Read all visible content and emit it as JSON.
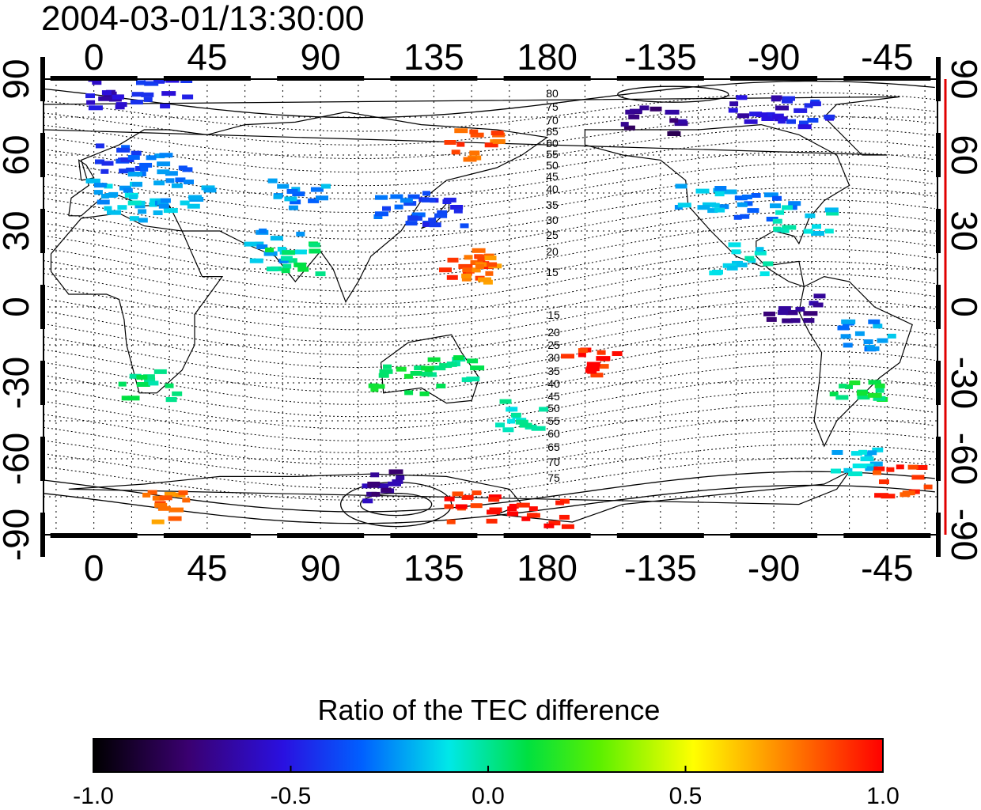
{
  "title": "2004-03-01/13:30:00",
  "map": {
    "lon_ticks_top": [
      "0",
      "45",
      "90",
      "135",
      "180",
      "-135",
      "-90",
      "-45"
    ],
    "lon_ticks_bottom": [
      "0",
      "45",
      "90",
      "135",
      "180",
      "-135",
      "-90",
      "-45"
    ],
    "lat_ticks_left": [
      "90",
      "60",
      "30",
      "0",
      "-30",
      "-60",
      "-90"
    ],
    "lat_ticks_right": [
      "90",
      "60",
      "30",
      "0",
      "-30",
      "-60",
      "-90"
    ],
    "contour_labels_north": [
      "80",
      "75",
      "70",
      "65",
      "60",
      "55",
      "50",
      "45",
      "40",
      "35",
      "30",
      "25",
      "20",
      "15"
    ],
    "contour_labels_south": [
      "15",
      "20",
      "25",
      "30",
      "35",
      "40",
      "45",
      "50",
      "55",
      "60",
      "65",
      "70",
      "75"
    ],
    "right_axis_color": "#e00000"
  },
  "colorbar": {
    "title": "Ratio of the TEC difference",
    "tick_labels": [
      "-1.0",
      "-0.5",
      "0.0",
      "0.5",
      "1.0"
    ],
    "range": [
      -1.0,
      1.0
    ],
    "colormap": [
      "#000000",
      "#3a0070",
      "#2a10e0",
      "#0060ff",
      "#00e8e8",
      "#00e040",
      "#5af000",
      "#ffff00",
      "#ff8000",
      "#ff0000"
    ]
  },
  "chart_data": {
    "type": "heatmap",
    "title": "2004-03-01/13:30:00",
    "colorbar_label": "Ratio of the TEC difference",
    "value_range": [
      -1.0,
      1.0
    ],
    "lon_range": [
      -20,
      335
    ],
    "lat_range": [
      -90,
      90
    ],
    "grid": true,
    "patches": [
      {
        "lon": 5,
        "lat": 85,
        "v": -0.6
      },
      {
        "lon": 25,
        "lat": 86,
        "v": -0.5
      },
      {
        "lon": 10,
        "lat": 60,
        "v": -0.4
      },
      {
        "lon": 25,
        "lat": 55,
        "v": -0.3
      },
      {
        "lon": 5,
        "lat": 48,
        "v": -0.2
      },
      {
        "lon": 15,
        "lat": 40,
        "v": -0.15
      },
      {
        "lon": 35,
        "lat": 45,
        "v": -0.2
      },
      {
        "lon": 80,
        "lat": 45,
        "v": -0.25
      },
      {
        "lon": 70,
        "lat": 25,
        "v": -0.2
      },
      {
        "lon": 78,
        "lat": 20,
        "v": 0.05
      },
      {
        "lon": 120,
        "lat": 40,
        "v": -0.35
      },
      {
        "lon": 135,
        "lat": 38,
        "v": -0.45
      },
      {
        "lon": 145,
        "lat": 18,
        "v": 0.9
      },
      {
        "lon": 152,
        "lat": 15,
        "v": 0.8
      },
      {
        "lon": 150,
        "lat": 65,
        "v": 0.85
      },
      {
        "lon": 220,
        "lat": 75,
        "v": -0.75
      },
      {
        "lon": 260,
        "lat": 80,
        "v": -0.6
      },
      {
        "lon": 280,
        "lat": 78,
        "v": -0.5
      },
      {
        "lon": 240,
        "lat": 45,
        "v": -0.2
      },
      {
        "lon": 265,
        "lat": 40,
        "v": -0.3
      },
      {
        "lon": 280,
        "lat": 35,
        "v": -0.1
      },
      {
        "lon": 255,
        "lat": 20,
        "v": -0.1
      },
      {
        "lon": 275,
        "lat": 0,
        "v": -0.7
      },
      {
        "lon": 305,
        "lat": -10,
        "v": -0.25
      },
      {
        "lon": 300,
        "lat": -30,
        "v": 0.1
      },
      {
        "lon": 300,
        "lat": -60,
        "v": -0.15
      },
      {
        "lon": 20,
        "lat": -30,
        "v": 0.05
      },
      {
        "lon": 140,
        "lat": -25,
        "v": 0.05
      },
      {
        "lon": 120,
        "lat": -28,
        "v": 0.1
      },
      {
        "lon": 170,
        "lat": -42,
        "v": -0.05
      },
      {
        "lon": 150,
        "lat": -78,
        "v": 0.95
      },
      {
        "lon": 175,
        "lat": -80,
        "v": 1.0
      },
      {
        "lon": 195,
        "lat": -20,
        "v": 0.95
      },
      {
        "lon": 110,
        "lat": -70,
        "v": -0.7
      },
      {
        "lon": 320,
        "lat": -68,
        "v": 0.9
      },
      {
        "lon": 30,
        "lat": -78,
        "v": 0.8
      }
    ]
  }
}
